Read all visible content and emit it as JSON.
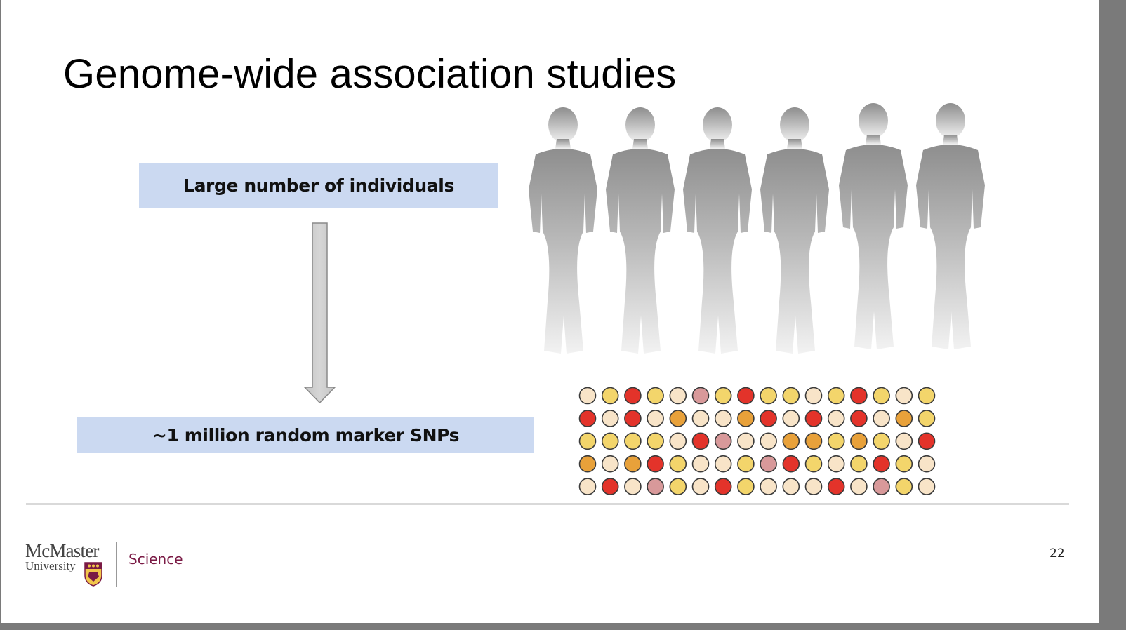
{
  "slide": {
    "title": "Genome-wide association studies",
    "page_number": "22"
  },
  "flow": {
    "top_label": "Large number of individuals",
    "bottom_label": "~1 million random marker SNPs"
  },
  "figure": {
    "people_count": 6,
    "snp_grid": {
      "rows": [
        [
          "p",
          "y",
          "r",
          "y",
          "p",
          "k",
          "y",
          "r",
          "y",
          "y",
          "p",
          "y",
          "r",
          "y",
          "p",
          "y"
        ],
        [
          "r",
          "p",
          "r",
          "p",
          "o",
          "p",
          "p",
          "o",
          "r",
          "p",
          "r",
          "p",
          "r",
          "p",
          "o",
          "y"
        ],
        [
          "y",
          "y",
          "y",
          "y",
          "p",
          "r",
          "k",
          "p",
          "p",
          "o",
          "o",
          "y",
          "o",
          "y",
          "p",
          "r"
        ],
        [
          "o",
          "p",
          "o",
          "r",
          "y",
          "p",
          "p",
          "y",
          "k",
          "r",
          "y",
          "p",
          "y",
          "r",
          "y",
          "p"
        ],
        [
          "p",
          "r",
          "p",
          "k",
          "y",
          "p",
          "r",
          "y",
          "p",
          "p",
          "p",
          "r",
          "p",
          "k",
          "y",
          "p"
        ]
      ],
      "colors": {
        "p": "#f8e4c8",
        "y": "#f3d56b",
        "r": "#e3332a",
        "o": "#e8a13a",
        "k": "#d8999a"
      }
    }
  },
  "footer": {
    "university_name": "McMaster",
    "university_sub": "University",
    "faculty": "Science"
  }
}
